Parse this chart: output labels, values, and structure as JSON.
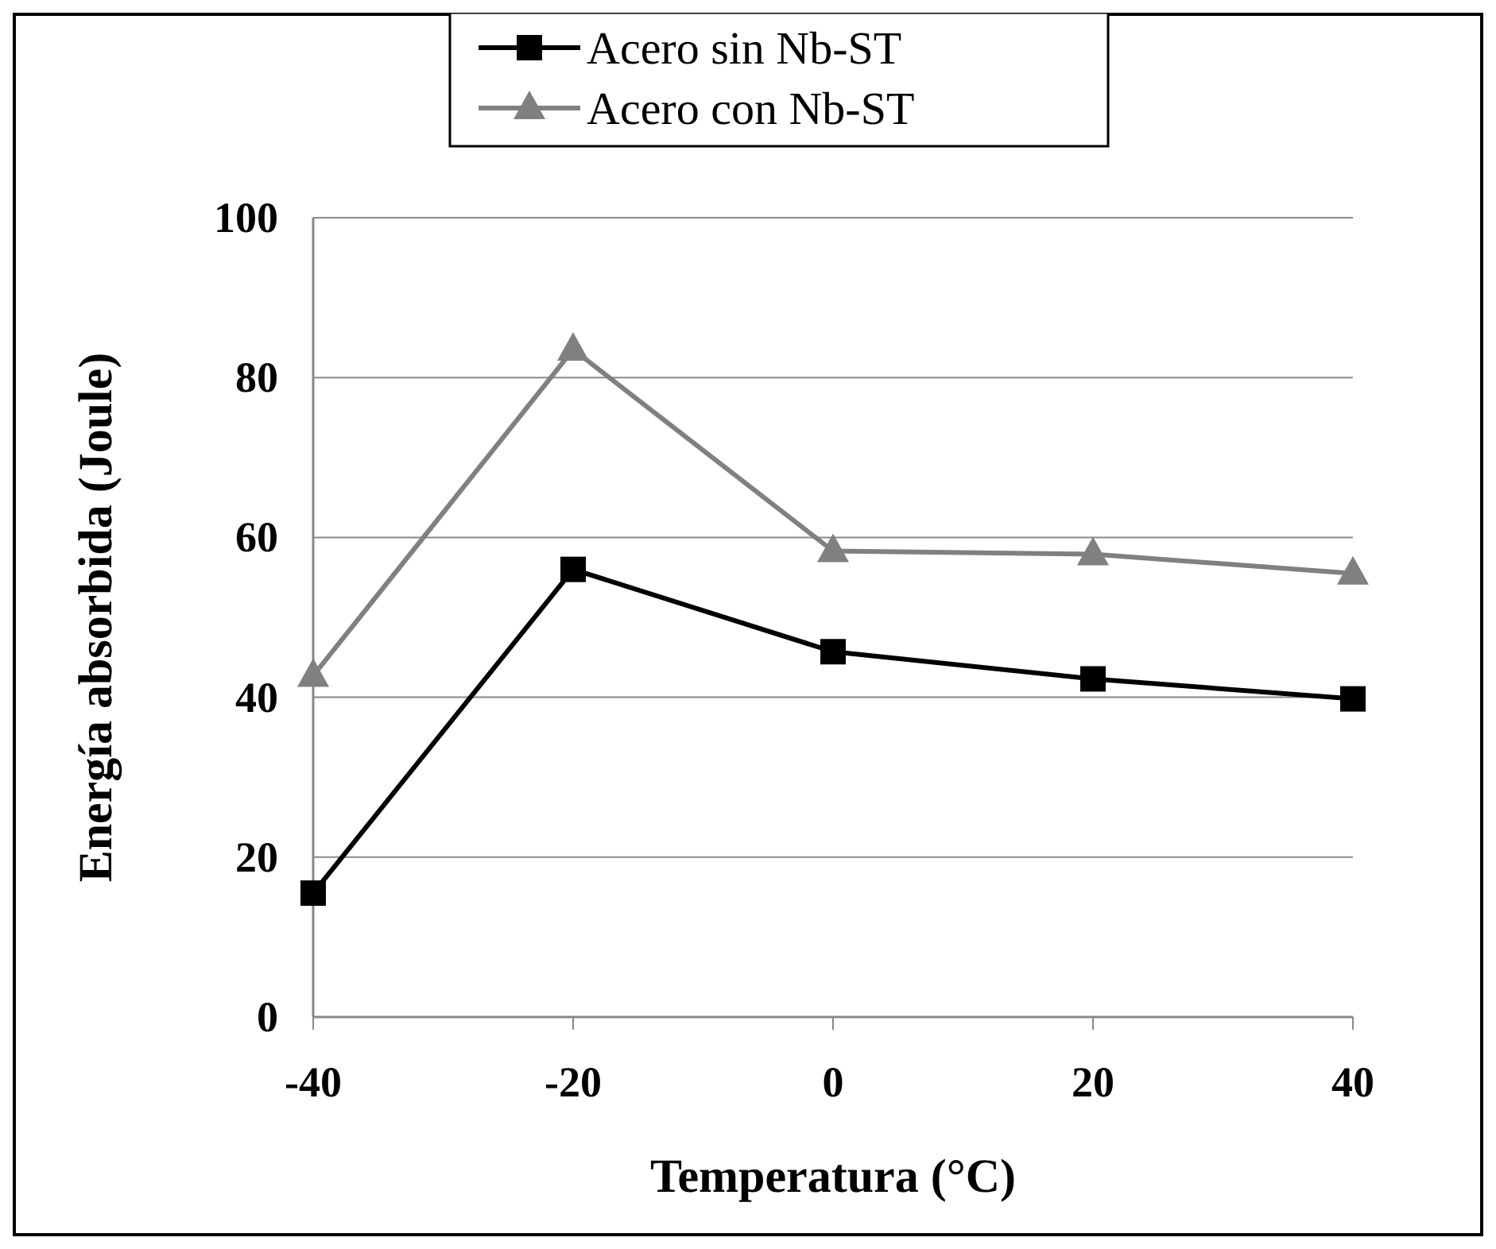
{
  "chart_data": {
    "type": "line",
    "xlabel": "Temperatura (°C)",
    "ylabel": "Energía absorbida (Joule)",
    "x": [
      -40,
      -20,
      0,
      20,
      40
    ],
    "series": [
      {
        "name": "Acero sin Nb-ST",
        "color": "#000000",
        "marker": "square",
        "values": [
          15.5,
          56,
          45.7,
          42.3,
          39.8
        ]
      },
      {
        "name": "Acero con Nb-ST",
        "color": "#808080",
        "marker": "triangle",
        "values": [
          42.7,
          83.5,
          58.3,
          57.9,
          55.5
        ]
      }
    ],
    "xlim": [
      -40,
      40
    ],
    "xticks": [
      -40,
      -20,
      0,
      20,
      40
    ],
    "ylim": [
      0,
      100
    ],
    "yticks": [
      0,
      20,
      40,
      60,
      80,
      100
    ],
    "grid": "y",
    "legend": "top",
    "line_style": "solid"
  }
}
